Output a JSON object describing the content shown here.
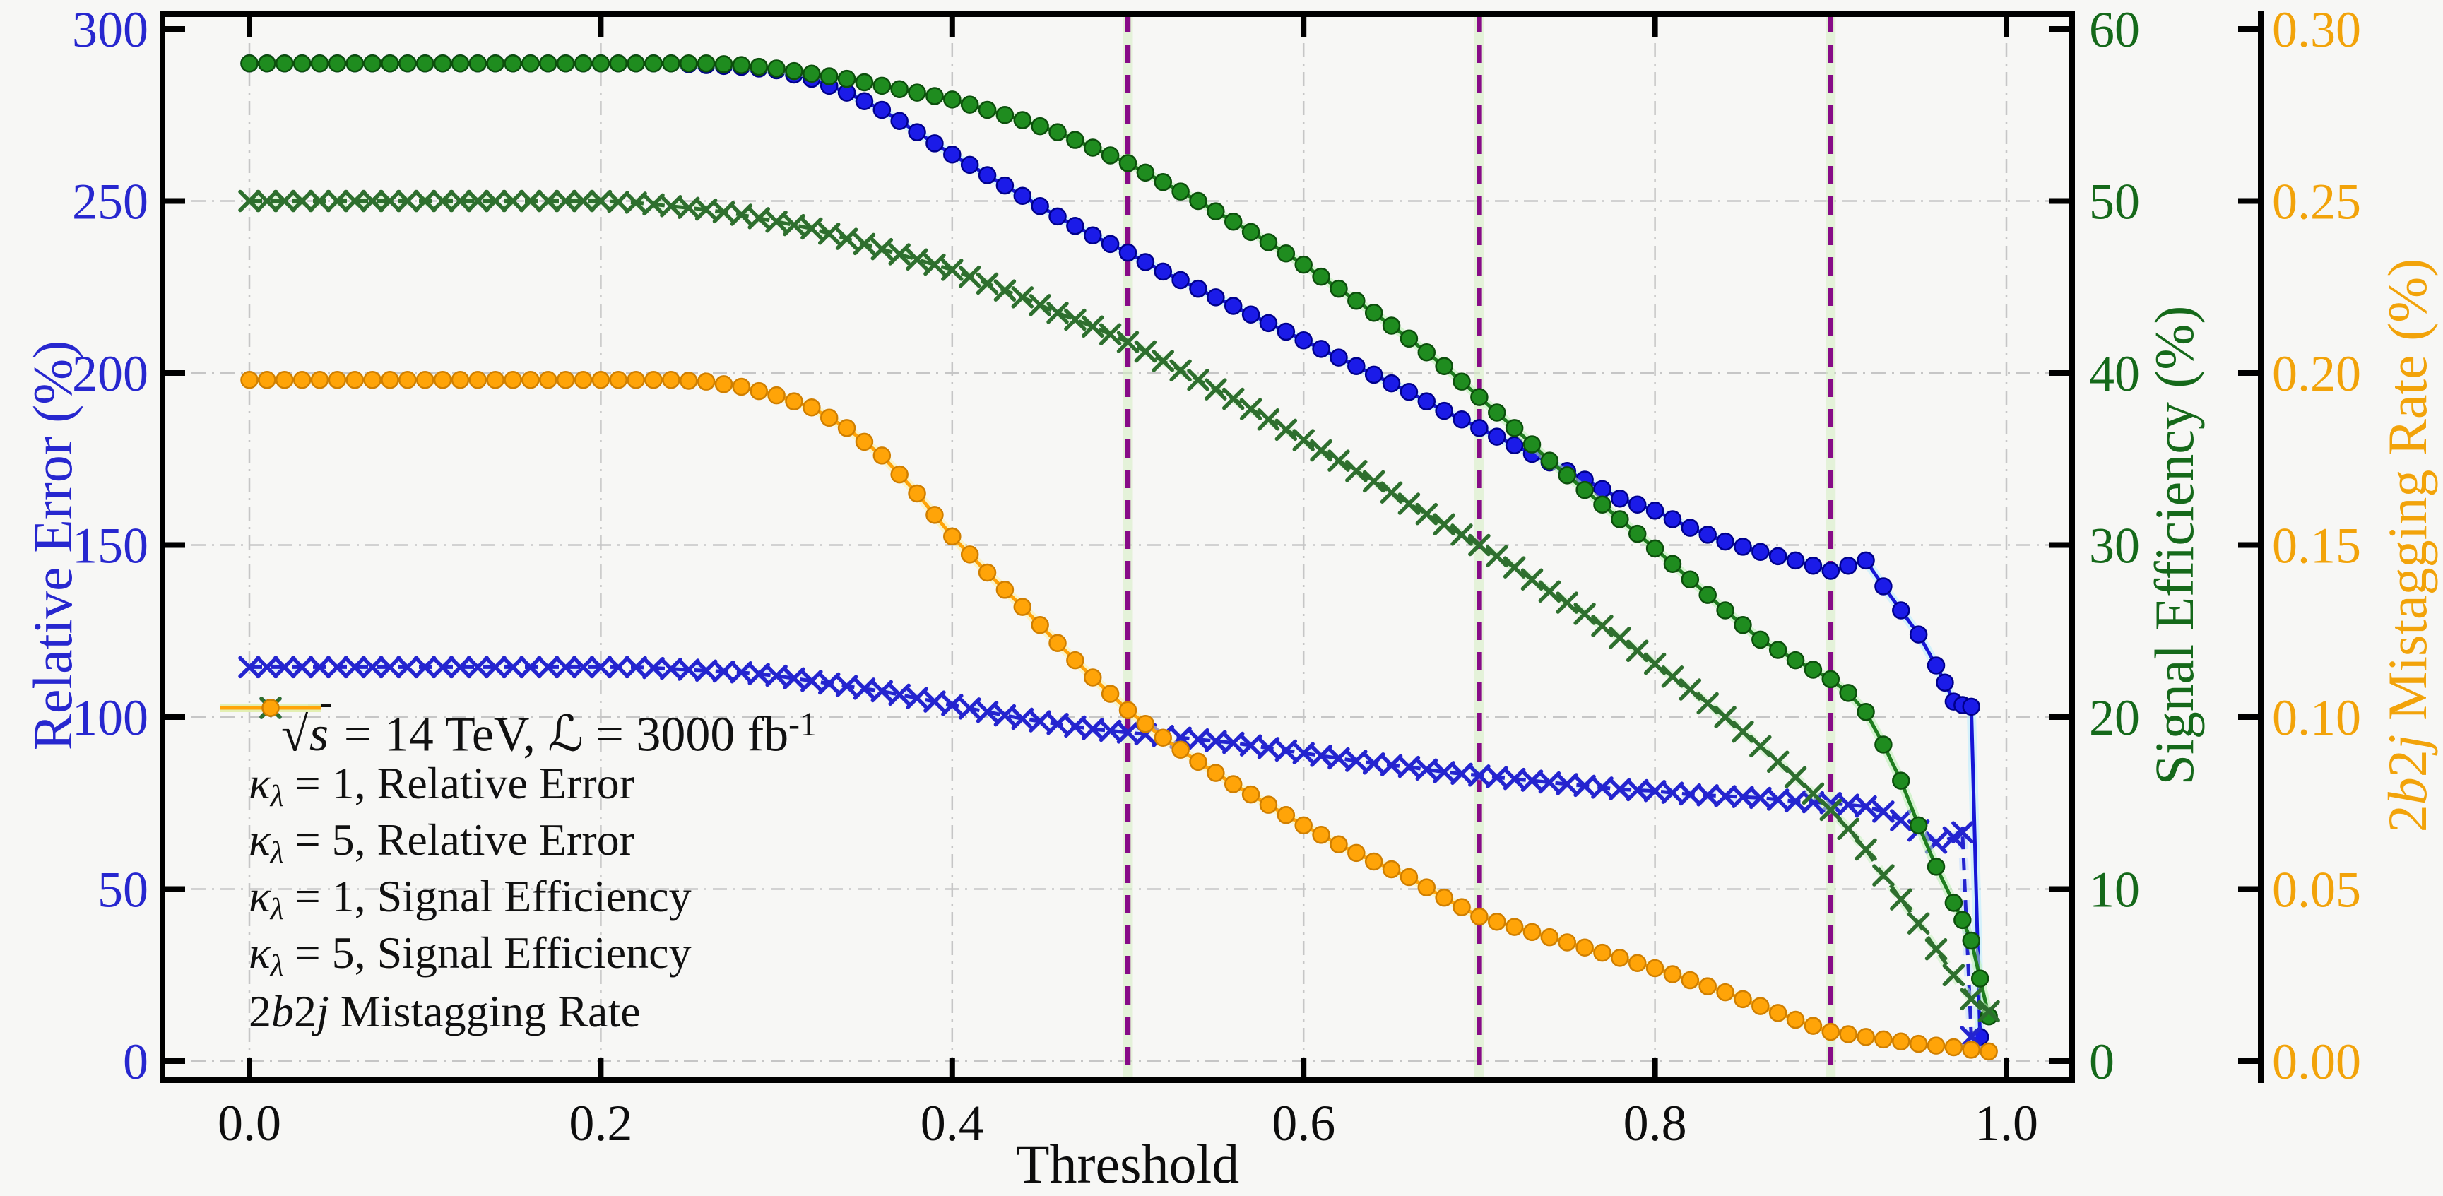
{
  "figure": {
    "background": "#f7f7f5"
  },
  "chart_data": {
    "type": "line",
    "title": "",
    "xlabel": "Threshold",
    "grid": true,
    "x_axis": {
      "lim": [
        -0.0495,
        1.0375
      ],
      "tick_values": [
        0,
        0.2,
        0.4,
        0.6,
        0.8,
        1.0
      ],
      "tick_labels": [
        "0.0",
        "0.2",
        "0.4",
        "0.6",
        "0.8",
        "1.0"
      ],
      "color": "#0d0d0d"
    },
    "axes": {
      "left": {
        "label": "Relative Error (%)",
        "lim": [
          0,
          300
        ],
        "tick_values": [
          0,
          50,
          100,
          150,
          200,
          250,
          300
        ],
        "tick_labels": [
          "0",
          "50",
          "100",
          "150",
          "200",
          "250",
          "300"
        ],
        "grid_values": [
          0,
          50,
          100,
          150,
          200,
          250
        ],
        "color": "#2727cf"
      },
      "right1": {
        "label": "Signal Efficiency (%)",
        "lim": [
          0,
          60
        ],
        "tick_values": [
          0,
          10,
          20,
          30,
          40,
          50,
          60
        ],
        "tick_labels": [
          "0",
          "10",
          "20",
          "30",
          "40",
          "50",
          "60"
        ],
        "color": "#15691a"
      },
      "right2": {
        "label": "2*b*2*j* Mistagging Rate (%)",
        "lim": [
          0,
          0.3
        ],
        "tick_values": [
          0,
          0.05,
          0.1,
          0.15,
          0.2,
          0.25,
          0.3
        ],
        "tick_labels": [
          "0.00",
          "0.05",
          "0.10",
          "0.15",
          "0.20",
          "0.25",
          "0.30"
        ],
        "color": "#f2a30a"
      }
    },
    "threshold_lines": {
      "x": [
        0.5,
        0.7,
        0.9
      ],
      "color": "#870c87",
      "halo": "#d8efc8",
      "style": "dashed"
    },
    "legend": {
      "header": "√{s} = 14 TeV, ℒ = 3000 fb^{-1}"
    },
    "series": [
      {
        "id": "rel-err-k1",
        "label": "*κ*_{*λ*} = 1, Relative Error",
        "axis": "left",
        "line": "solid",
        "marker": "circle",
        "color": "#1616d6",
        "marker_fill": "#1b1be8",
        "marker_edge": "#00008b",
        "halo": "#b8ecff",
        "x": [
          0,
          0.02,
          0.04,
          0.06,
          0.08,
          0.1,
          0.12,
          0.14,
          0.16,
          0.18,
          0.2,
          0.22,
          0.24,
          0.26,
          0.28,
          0.3,
          0.32,
          0.34,
          0.36,
          0.38,
          0.4,
          0.42,
          0.44,
          0.46,
          0.48,
          0.5,
          0.52,
          0.54,
          0.56,
          0.58,
          0.6,
          0.62,
          0.64,
          0.66,
          0.68,
          0.7,
          0.72,
          0.74,
          0.76,
          0.78,
          0.8,
          0.82,
          0.84,
          0.86,
          0.88,
          0.9,
          0.91,
          0.92,
          0.93,
          0.94,
          0.95,
          0.96,
          0.965,
          0.97,
          0.975,
          0.98,
          0.985
        ],
        "y": [
          290,
          290,
          290,
          290,
          290,
          290,
          290,
          290,
          290,
          290,
          290,
          290,
          290,
          289.5,
          289,
          288,
          285.5,
          281.5,
          276.5,
          270,
          263.5,
          257.5,
          251.5,
          245.5,
          240,
          235,
          229.5,
          224.5,
          219.5,
          214.5,
          209.5,
          204.5,
          199.5,
          194.5,
          189,
          184,
          179,
          174,
          169,
          163.5,
          160,
          155,
          151,
          148,
          145.5,
          142.5,
          144,
          145.5,
          138,
          131,
          124,
          115,
          110,
          104.5,
          103.5,
          103,
          7
        ]
      },
      {
        "id": "rel-err-k5",
        "label": "*κ*_{*λ*} = 5, Relative Error",
        "axis": "left",
        "line": "dashed",
        "marker": "x",
        "color": "#2424cf",
        "marker_fill": "#2424cf",
        "marker_edge": "#11118a",
        "halo": "#c2dcff",
        "x": [
          0,
          0.02,
          0.04,
          0.06,
          0.08,
          0.1,
          0.12,
          0.14,
          0.16,
          0.18,
          0.2,
          0.22,
          0.24,
          0.26,
          0.28,
          0.3,
          0.32,
          0.34,
          0.36,
          0.38,
          0.4,
          0.42,
          0.44,
          0.46,
          0.48,
          0.5,
          0.52,
          0.54,
          0.56,
          0.58,
          0.6,
          0.62,
          0.64,
          0.66,
          0.68,
          0.7,
          0.72,
          0.74,
          0.76,
          0.78,
          0.8,
          0.82,
          0.84,
          0.86,
          0.88,
          0.9,
          0.91,
          0.92,
          0.93,
          0.94,
          0.95,
          0.96,
          0.97,
          0.975,
          0.98
        ],
        "y": [
          114.5,
          114.5,
          114.5,
          114.5,
          114.5,
          114.5,
          114.5,
          114.5,
          114.5,
          114.5,
          114.5,
          114.5,
          114,
          113.5,
          113,
          112,
          110.5,
          109,
          107.5,
          105.5,
          103.5,
          101.5,
          99.5,
          98,
          96.5,
          95.5,
          94.5,
          93.5,
          92.5,
          91,
          89.5,
          88,
          86.5,
          85.5,
          84,
          83,
          82,
          81,
          80,
          79,
          78.5,
          77.5,
          77,
          76.5,
          75.5,
          75,
          74.5,
          74,
          72.5,
          70,
          67,
          63.5,
          65,
          66.5,
          7
        ]
      },
      {
        "id": "sig-eff-k1",
        "label": "*κ*_{*λ*} = 1, Signal Efficiency",
        "axis": "right1",
        "line": "solid",
        "marker": "circle",
        "color": "#1e7d1e",
        "marker_fill": "#1f8c1f",
        "marker_edge": "#0c4f0c",
        "halo": "#baf0b0",
        "x": [
          0,
          0.02,
          0.04,
          0.06,
          0.08,
          0.1,
          0.12,
          0.14,
          0.16,
          0.18,
          0.2,
          0.22,
          0.24,
          0.26,
          0.28,
          0.3,
          0.32,
          0.34,
          0.36,
          0.38,
          0.4,
          0.42,
          0.44,
          0.46,
          0.48,
          0.5,
          0.52,
          0.54,
          0.56,
          0.58,
          0.6,
          0.62,
          0.64,
          0.66,
          0.68,
          0.7,
          0.72,
          0.74,
          0.76,
          0.78,
          0.8,
          0.82,
          0.84,
          0.86,
          0.88,
          0.9,
          0.91,
          0.92,
          0.93,
          0.94,
          0.95,
          0.96,
          0.97,
          0.975,
          0.98,
          0.985,
          0.99
        ],
        "y": [
          58,
          58,
          58,
          58,
          58,
          58,
          58,
          58,
          58,
          58,
          58,
          58,
          58,
          58,
          57.9,
          57.7,
          57.4,
          57.1,
          56.7,
          56.3,
          55.9,
          55.3,
          54.7,
          54,
          53.1,
          52.2,
          51.1,
          50,
          48.8,
          47.6,
          46.3,
          44.9,
          43.5,
          42,
          40.4,
          38.6,
          36.8,
          34.9,
          33.2,
          31.5,
          29.8,
          28,
          26.2,
          24.5,
          23.3,
          22.2,
          21.4,
          20.3,
          18.4,
          16.3,
          13.7,
          11.3,
          9.2,
          8.2,
          7,
          4.8,
          2.6
        ]
      },
      {
        "id": "sig-eff-k5",
        "label": "*κ*_{*λ*} = 5, Signal Efficiency",
        "axis": "right1",
        "line": "dashed",
        "marker": "x",
        "color": "#2e6f2e",
        "marker_fill": "#2e6f2e",
        "marker_edge": "#1c451c",
        "halo": "#c8f2c0",
        "x": [
          0,
          0.02,
          0.04,
          0.06,
          0.08,
          0.1,
          0.12,
          0.14,
          0.16,
          0.18,
          0.2,
          0.22,
          0.24,
          0.26,
          0.28,
          0.3,
          0.32,
          0.34,
          0.36,
          0.38,
          0.4,
          0.42,
          0.44,
          0.46,
          0.48,
          0.5,
          0.52,
          0.54,
          0.56,
          0.58,
          0.6,
          0.62,
          0.64,
          0.66,
          0.68,
          0.7,
          0.72,
          0.74,
          0.76,
          0.78,
          0.8,
          0.82,
          0.84,
          0.86,
          0.88,
          0.9,
          0.91,
          0.92,
          0.93,
          0.94,
          0.95,
          0.96,
          0.97,
          0.98,
          0.99
        ],
        "y": [
          50,
          50,
          50,
          50,
          50,
          50,
          50,
          50,
          50,
          50,
          50,
          49.9,
          49.7,
          49.5,
          49.2,
          48.8,
          48.4,
          47.8,
          47.2,
          46.6,
          46,
          45.2,
          44.4,
          43.5,
          42.7,
          41.8,
          40.7,
          39.6,
          38.5,
          37.3,
          36.1,
          34.9,
          33.7,
          32.4,
          31.2,
          30,
          28.7,
          27.3,
          26,
          24.6,
          23.1,
          21.6,
          20,
          18.3,
          16.5,
          14.6,
          13.5,
          12.3,
          10.8,
          9.4,
          8,
          6.5,
          5,
          3.6,
          2.9
        ]
      },
      {
        "id": "mistag-2b2j",
        "label": "2*b*2*j* Mistagging Rate",
        "axis": "right2",
        "line": "solid",
        "marker": "circle",
        "color": "#ffa408",
        "marker_fill": "#ffa408",
        "marker_edge": "#d07f00",
        "halo": "#fdf0a2",
        "x": [
          0,
          0.02,
          0.04,
          0.06,
          0.08,
          0.1,
          0.12,
          0.14,
          0.16,
          0.18,
          0.2,
          0.22,
          0.24,
          0.26,
          0.28,
          0.3,
          0.32,
          0.34,
          0.36,
          0.38,
          0.4,
          0.42,
          0.44,
          0.46,
          0.48,
          0.5,
          0.52,
          0.54,
          0.56,
          0.58,
          0.6,
          0.62,
          0.64,
          0.66,
          0.68,
          0.7,
          0.72,
          0.74,
          0.76,
          0.78,
          0.8,
          0.82,
          0.84,
          0.86,
          0.88,
          0.9,
          0.91,
          0.92,
          0.93,
          0.94,
          0.95,
          0.96,
          0.97,
          0.98,
          0.99
        ],
        "y": [
          0.198,
          0.198,
          0.198,
          0.198,
          0.198,
          0.198,
          0.198,
          0.198,
          0.198,
          0.198,
          0.198,
          0.198,
          0.198,
          0.1975,
          0.196,
          0.1935,
          0.19,
          0.184,
          0.176,
          0.165,
          0.1525,
          0.142,
          0.132,
          0.1215,
          0.1115,
          0.102,
          0.094,
          0.087,
          0.0805,
          0.0745,
          0.0685,
          0.063,
          0.058,
          0.0535,
          0.0475,
          0.042,
          0.039,
          0.036,
          0.033,
          0.03,
          0.027,
          0.0235,
          0.02,
          0.016,
          0.012,
          0.0085,
          0.0078,
          0.007,
          0.0063,
          0.0057,
          0.005,
          0.0045,
          0.004,
          0.0033,
          0.0028
        ]
      }
    ]
  }
}
